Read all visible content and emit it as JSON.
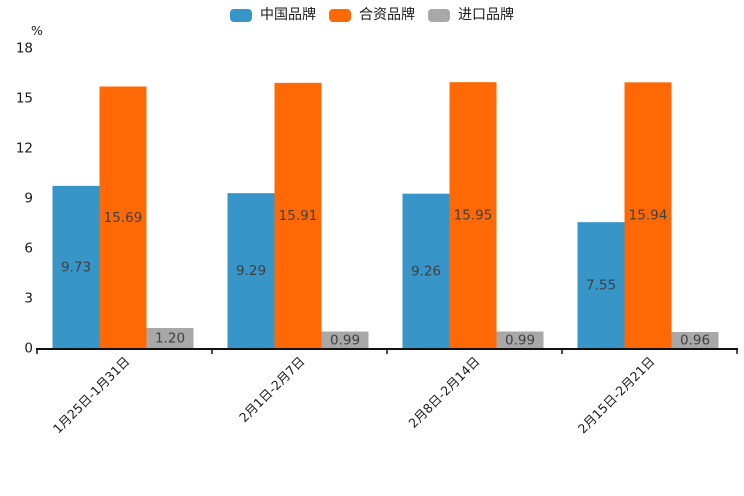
{
  "chart_data": {
    "type": "bar",
    "unit_label": "%",
    "categories": [
      "1月25日-1月31日",
      "2月1日-2月7日",
      "2月8日-2月14日",
      "2月15日-2月21日"
    ],
    "series": [
      {
        "name": "中国品牌",
        "color": "#3795c8",
        "values": [
          9.73,
          9.29,
          9.26,
          7.55
        ],
        "labels": [
          "9.73",
          "9.29",
          "9.26",
          "7.55"
        ]
      },
      {
        "name": "合资品牌",
        "color": "#ff6905",
        "values": [
          15.69,
          15.91,
          15.95,
          15.94
        ],
        "labels": [
          "15.69",
          "15.91",
          "15.95",
          "15.94"
        ]
      },
      {
        "name": "进口品牌",
        "color": "#a8a8a8",
        "values": [
          1.2,
          0.99,
          0.99,
          0.96
        ],
        "labels": [
          "1.20",
          "0.99",
          "0.99",
          "0.96"
        ]
      }
    ],
    "ylim": [
      0,
      18
    ],
    "ytick_step": 3,
    "yticks": [
      "0",
      "3",
      "6",
      "9",
      "12",
      "15",
      "18"
    ],
    "grid": false,
    "legend_position": "top",
    "value_label_color": "#404040",
    "axis_color": "#111111",
    "tick_label_color": "#1a1a1a"
  }
}
